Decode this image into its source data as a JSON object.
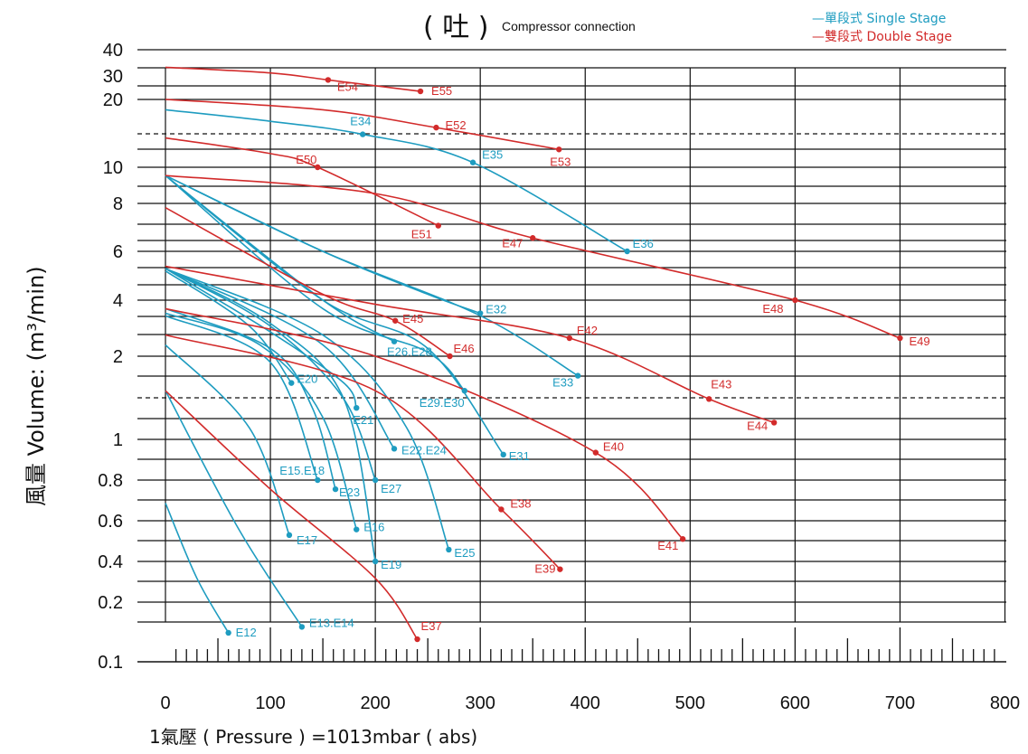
{
  "title": {
    "main": "( 吐 )",
    "sub": "Compressor connection"
  },
  "legend": [
    {
      "key": "single",
      "text": "—單段式 Single Stage",
      "color": "#1e9cc0"
    },
    {
      "key": "double",
      "text": "—雙段式 Double Stage",
      "color": "#d22b2b"
    }
  ],
  "colors": {
    "single": "#1e9cc0",
    "double": "#d22b2b",
    "grid": "#111111",
    "axis_text": "#111111"
  },
  "chart_data": {
    "type": "line",
    "title": "( 吐 ) Compressor connection",
    "xlabel": "1氣壓 ( Pressure ) =1013mbar ( abs)",
    "ylabel": "風量 Volume: (m³/min)",
    "xlim": [
      0,
      800
    ],
    "x_ticks": [
      0,
      100,
      200,
      300,
      400,
      500,
      600,
      700,
      800
    ],
    "y_scale": "irregular, log-like per printed labels",
    "y_tick_labels": [
      "0.1",
      "0.2",
      "0.4",
      "0.6",
      "0.8",
      "1",
      "2",
      "4",
      "6",
      "8",
      "10",
      "20",
      "30",
      "40"
    ],
    "grid": true,
    "legend_position": "top-right",
    "series": [
      {
        "name": "E12",
        "stage": "single",
        "x": [
          0,
          30,
          60
        ],
        "y": [
          0.68,
          0.3,
          0.14
        ]
      },
      {
        "name": "E13.E14",
        "stage": "single",
        "x": [
          0,
          70,
          130
        ],
        "y": [
          1.5,
          0.55,
          0.15
        ]
      },
      {
        "name": "E17",
        "stage": "single",
        "x": [
          0,
          80,
          118
        ],
        "y": [
          2.3,
          1.1,
          0.52
        ]
      },
      {
        "name": "E15.E18",
        "stage": "single",
        "x": [
          0,
          100,
          145
        ],
        "y": [
          3.3,
          1.9,
          0.8
        ]
      },
      {
        "name": "E16",
        "stage": "single",
        "x": [
          0,
          90,
          150,
          182
        ],
        "y": [
          3.4,
          2.3,
          1.2,
          0.55
        ]
      },
      {
        "name": "E23",
        "stage": "single",
        "x": [
          0,
          100,
          140,
          162
        ],
        "y": [
          3.6,
          2.2,
          1.3,
          0.75
        ]
      },
      {
        "name": "E19",
        "stage": "single",
        "x": [
          0,
          100,
          170,
          200
        ],
        "y": [
          5.2,
          3.0,
          1.4,
          0.4
        ]
      },
      {
        "name": "E20",
        "stage": "single",
        "x": [
          0,
          80,
          120
        ],
        "y": [
          5.1,
          2.9,
          1.6
        ]
      },
      {
        "name": "E27",
        "stage": "single",
        "x": [
          0,
          100,
          170,
          200
        ],
        "y": [
          5.2,
          2.9,
          1.4,
          0.8
        ]
      },
      {
        "name": "E21",
        "stage": "single",
        "x": [
          0,
          100,
          170,
          182
        ],
        "y": [
          5.2,
          2.7,
          1.6,
          1.3
        ]
      },
      {
        "name": "E25",
        "stage": "single",
        "x": [
          0,
          150,
          230,
          270
        ],
        "y": [
          5.2,
          2.6,
          1.1,
          0.45
        ]
      },
      {
        "name": "E22.E24",
        "stage": "single",
        "x": [
          0,
          150,
          218
        ],
        "y": [
          5.2,
          2.3,
          0.95
        ]
      },
      {
        "name": "E26.E28",
        "stage": "single",
        "x": [
          0,
          150,
          218
        ],
        "y": [
          9.5,
          4.0,
          2.4
        ]
      },
      {
        "name": "E31",
        "stage": "single",
        "x": [
          0,
          150,
          250,
          322
        ],
        "y": [
          9.5,
          4.0,
          2.2,
          0.92
        ]
      },
      {
        "name": "E29.E30",
        "stage": "single",
        "x": [
          0,
          150,
          250,
          285
        ],
        "y": [
          9.5,
          3.6,
          2.1,
          1.5
        ]
      },
      {
        "name": "E32",
        "stage": "single",
        "x": [
          0,
          150,
          250,
          300
        ],
        "y": [
          9.5,
          6.0,
          4.2,
          3.4
        ]
      },
      {
        "name": "E33",
        "stage": "single",
        "x": [
          0,
          150,
          300,
          393
        ],
        "y": [
          9.5,
          6.0,
          3.3,
          1.7
        ]
      },
      {
        "name": "E34-E36",
        "stage": "single",
        "x": [
          0,
          100,
          188,
          293,
          440
        ],
        "y": [
          18,
          16,
          14,
          10.5,
          6
        ]
      },
      {
        "name": "E37",
        "stage": "double",
        "x": [
          0,
          100,
          200,
          240
        ],
        "y": [
          1.5,
          0.75,
          0.3,
          0.13
        ]
      },
      {
        "name": "E38-E39",
        "stage": "double",
        "x": [
          0,
          200,
          320,
          376
        ],
        "y": [
          2.6,
          1.5,
          0.65,
          0.35
        ]
      },
      {
        "name": "E40-E41",
        "stage": "double",
        "x": [
          0,
          200,
          410,
          493
        ],
        "y": [
          3.6,
          2.0,
          0.93,
          0.5
        ]
      },
      {
        "name": "E45-E46",
        "stage": "double",
        "x": [
          0,
          150,
          219,
          271
        ],
        "y": [
          7.8,
          4.2,
          3.1,
          2.0
        ]
      },
      {
        "name": "E42-E44",
        "stage": "double",
        "x": [
          0,
          200,
          385,
          518,
          580
        ],
        "y": [
          5.3,
          3.8,
          2.5,
          1.4,
          1.15
        ]
      },
      {
        "name": "E50-E51",
        "stage": "double",
        "x": [
          0,
          100,
          145,
          260
        ],
        "y": [
          13.5,
          11.5,
          10,
          7
        ]
      },
      {
        "name": "E47-E49",
        "stage": "double",
        "x": [
          0,
          200,
          350,
          600,
          700
        ],
        "y": [
          9.5,
          8.5,
          6.5,
          4.0,
          2.5
        ]
      },
      {
        "name": "E52-E53",
        "stage": "double",
        "x": [
          0,
          150,
          258,
          375
        ],
        "y": [
          20,
          18,
          15,
          12
        ]
      },
      {
        "name": "E54-E55",
        "stage": "double",
        "x": [
          0,
          100,
          155,
          243
        ],
        "y": [
          33,
          31,
          28,
          23
        ]
      }
    ],
    "points": [
      {
        "label": "E12",
        "stage": "single",
        "x": 60,
        "y": 0.14,
        "lx": 8,
        "ly": 4
      },
      {
        "label": "E13.E14",
        "stage": "single",
        "x": 130,
        "y": 0.15,
        "lx": 8,
        "ly": 0
      },
      {
        "label": "E17",
        "stage": "single",
        "x": 118,
        "y": 0.52,
        "lx": 8,
        "ly": 10
      },
      {
        "label": "E15.E18",
        "stage": "single",
        "x": 145,
        "y": 0.8,
        "lx": -42,
        "ly": -6
      },
      {
        "label": "E16",
        "stage": "single",
        "x": 182,
        "y": 0.55,
        "lx": 8,
        "ly": 2
      },
      {
        "label": "E23",
        "stage": "single",
        "x": 162,
        "y": 0.75,
        "lx": 4,
        "ly": 8
      },
      {
        "label": "E19",
        "stage": "single",
        "x": 200,
        "y": 0.4,
        "lx": 6,
        "ly": 8
      },
      {
        "label": "E20",
        "stage": "single",
        "x": 120,
        "y": 1.6,
        "lx": 6,
        "ly": 0
      },
      {
        "label": "E27",
        "stage": "single",
        "x": 200,
        "y": 0.8,
        "lx": 6,
        "ly": 14
      },
      {
        "label": "E21",
        "stage": "single",
        "x": 182,
        "y": 1.3,
        "lx": -4,
        "ly": 18
      },
      {
        "label": "E25",
        "stage": "single",
        "x": 270,
        "y": 0.45,
        "lx": 6,
        "ly": 8
      },
      {
        "label": "E22.E24",
        "stage": "single",
        "x": 218,
        "y": 0.95,
        "lx": 8,
        "ly": 6
      },
      {
        "label": "E26.E28",
        "stage": "single",
        "x": 218,
        "y": 2.4,
        "lx": -8,
        "ly": 16
      },
      {
        "label": "E31",
        "stage": "single",
        "x": 322,
        "y": 0.92,
        "lx": 6,
        "ly": 6
      },
      {
        "label": "E29.E30",
        "stage": "single",
        "x": 285,
        "y": 1.5,
        "lx": -50,
        "ly": 18
      },
      {
        "label": "E32",
        "stage": "single",
        "x": 300,
        "y": 3.4,
        "lx": 6,
        "ly": 0
      },
      {
        "label": "E33",
        "stage": "single",
        "x": 393,
        "y": 1.7,
        "lx": -28,
        "ly": 12
      },
      {
        "label": "E34",
        "stage": "single",
        "x": 188,
        "y": 14,
        "lx": -14,
        "ly": -10
      },
      {
        "label": "E35",
        "stage": "single",
        "x": 293,
        "y": 10.5,
        "lx": 10,
        "ly": -4
      },
      {
        "label": "E36",
        "stage": "single",
        "x": 440,
        "y": 6,
        "lx": 6,
        "ly": -4
      },
      {
        "label": "E37",
        "stage": "double",
        "x": 240,
        "y": 0.13,
        "lx": 4,
        "ly": -10
      },
      {
        "label": "E38",
        "stage": "double",
        "x": 320,
        "y": 0.65,
        "lx": 10,
        "ly": -2
      },
      {
        "label": "E39",
        "stage": "double",
        "x": 376,
        "y": 0.35,
        "lx": -28,
        "ly": 4
      },
      {
        "label": "E40",
        "stage": "double",
        "x": 410,
        "y": 0.93,
        "lx": 8,
        "ly": -2
      },
      {
        "label": "E41",
        "stage": "double",
        "x": 493,
        "y": 0.5,
        "lx": -28,
        "ly": 12
      },
      {
        "label": "E42",
        "stage": "double",
        "x": 385,
        "y": 2.5,
        "lx": 8,
        "ly": -4
      },
      {
        "label": "E43",
        "stage": "double",
        "x": 518,
        "y": 1.4,
        "lx": 2,
        "ly": -12
      },
      {
        "label": "E44",
        "stage": "double",
        "x": 580,
        "y": 1.15,
        "lx": -30,
        "ly": 8
      },
      {
        "label": "E45",
        "stage": "double",
        "x": 219,
        "y": 3.1,
        "lx": 8,
        "ly": 2
      },
      {
        "label": "E46",
        "stage": "double",
        "x": 271,
        "y": 2.0,
        "lx": 4,
        "ly": -4
      },
      {
        "label": "E47",
        "stage": "double",
        "x": 350,
        "y": 6.5,
        "lx": -34,
        "ly": 10
      },
      {
        "label": "E48",
        "stage": "double",
        "x": 600,
        "y": 4.0,
        "lx": -36,
        "ly": 14
      },
      {
        "label": "E49",
        "stage": "double",
        "x": 700,
        "y": 2.5,
        "lx": 10,
        "ly": 8
      },
      {
        "label": "E50",
        "stage": "double",
        "x": 145,
        "y": 10,
        "lx": -24,
        "ly": -4
      },
      {
        "label": "E51",
        "stage": "double",
        "x": 260,
        "y": 7,
        "lx": -30,
        "ly": 14
      },
      {
        "label": "E52",
        "stage": "double",
        "x": 258,
        "y": 15,
        "lx": 10,
        "ly": 2
      },
      {
        "label": "E53",
        "stage": "double",
        "x": 375,
        "y": 12,
        "lx": -10,
        "ly": 18
      },
      {
        "label": "E54",
        "stage": "double",
        "x": 155,
        "y": 28,
        "lx": 10,
        "ly": 12
      },
      {
        "label": "E55",
        "stage": "double",
        "x": 243,
        "y": 23,
        "lx": 12,
        "ly": 4
      }
    ]
  }
}
